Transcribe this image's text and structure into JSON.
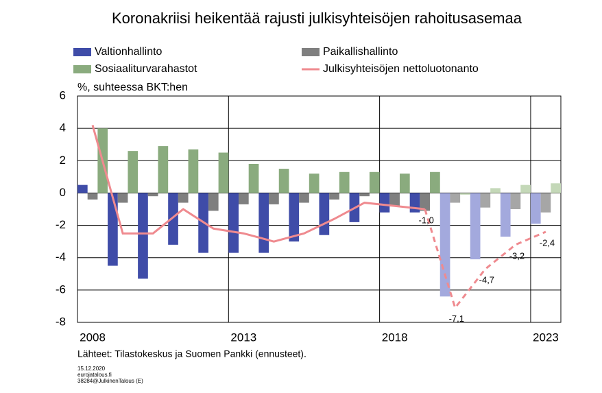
{
  "chart_data": {
    "type": "bar_line",
    "title": "Koronakriisi heikentää rajusti julkisyhteisöjen rahoitusasemaa",
    "y_axis_label": "%, suhteessa BKT:hen",
    "source": "Lähteet: Tilastokeskus  ja Suomen Pankki (ennusteet).",
    "footnotes": [
      "15.12.2020",
      "eurojatalous.fi",
      "38284@JulkinenTalous   (E)"
    ],
    "categories": [
      "2008",
      null,
      null,
      null,
      null,
      "2013",
      null,
      null,
      null,
      null,
      "2018",
      null,
      null,
      null,
      null,
      "2023"
    ],
    "ylim": [
      -8,
      6
    ],
    "yticks": [
      -8,
      -6,
      -4,
      -2,
      0,
      2,
      4,
      6
    ],
    "grid": true,
    "series": [
      {
        "name": "Valtionhallinto",
        "type": "bar",
        "color": "#3f4ca8",
        "colors": [
          "#3f4ca8",
          "#3f4ca8",
          "#3f4ca8",
          "#3f4ca8",
          "#3f4ca8",
          "#3f4ca8",
          "#3f4ca8",
          "#3f4ca8",
          "#3f4ca8",
          "#3f4ca8",
          "#3f4ca8",
          "#3f4ca8",
          "#a3a9dd",
          "#a3a9dd",
          "#a3a9dd",
          "#a3a9dd"
        ],
        "values": [
          0.5,
          -4.5,
          -5.3,
          -3.2,
          -3.7,
          -3.7,
          -3.7,
          -3.0,
          -2.6,
          -1.8,
          -1.2,
          -1.2,
          -6.4,
          -4.1,
          -2.7,
          -1.9
        ]
      },
      {
        "name": "Paikallishallinto",
        "type": "bar",
        "color": "#7f7f7f",
        "colors": [
          "#7f7f7f",
          "#7f7f7f",
          "#7f7f7f",
          "#7f7f7f",
          "#7f7f7f",
          "#7f7f7f",
          "#7f7f7f",
          "#7f7f7f",
          "#7f7f7f",
          "#7f7f7f",
          "#7f7f7f",
          "#7f7f7f",
          "#a6a6a6",
          "#a6a6a6",
          "#a6a6a6",
          "#a6a6a6"
        ],
        "values": [
          -0.4,
          -0.6,
          -0.2,
          -0.6,
          -1.1,
          -0.7,
          -0.7,
          -0.6,
          -0.4,
          -0.2,
          -0.8,
          -1.1,
          -0.6,
          -0.9,
          -1.0,
          -1.2
        ]
      },
      {
        "name": "Sosiaaliturvarahastot",
        "type": "bar",
        "color": "#8aab7e",
        "colors": [
          "#8aab7e",
          "#8aab7e",
          "#8aab7e",
          "#8aab7e",
          "#8aab7e",
          "#8aab7e",
          "#8aab7e",
          "#8aab7e",
          "#8aab7e",
          "#8aab7e",
          "#8aab7e",
          "#8aab7e",
          "#c4d8b8",
          "#c4d8b8",
          "#c4d8b8",
          "#c4d8b8"
        ],
        "values": [
          4.0,
          2.6,
          2.9,
          2.7,
          2.5,
          1.8,
          1.5,
          1.2,
          1.3,
          1.3,
          1.2,
          1.3,
          -0.1,
          0.3,
          0.5,
          0.6
        ]
      },
      {
        "name": "Julkisyhteisöjen nettoluotonanto",
        "type": "line",
        "color": "#ef8a8f",
        "line_styles": [
          "solid",
          "solid",
          "solid",
          "solid",
          "solid",
          "solid",
          "solid",
          "solid",
          "solid",
          "solid",
          "solid",
          "solid",
          "dashed",
          "dashed",
          "dashed",
          "dashed"
        ],
        "values": [
          4.2,
          -2.5,
          -2.5,
          -1.0,
          -2.2,
          -2.5,
          -3.0,
          -2.5,
          -1.6,
          -0.6,
          -0.8,
          -1.0,
          -7.1,
          -4.7,
          -3.2,
          -2.4
        ],
        "value_labels": [
          null,
          null,
          null,
          null,
          null,
          null,
          null,
          null,
          null,
          null,
          null,
          "-1,0",
          "-7,1",
          "-4,7",
          "-3,2",
          "-2,4"
        ]
      }
    ]
  }
}
